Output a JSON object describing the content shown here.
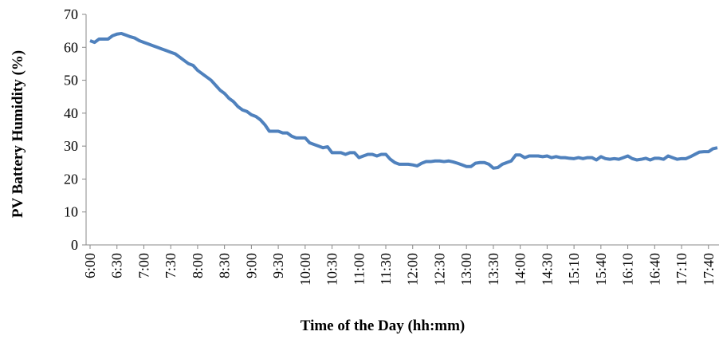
{
  "chart_data": {
    "type": "line",
    "y_label": "PV Battery Humidity (%)",
    "x_label": "Time of the Day (hh:mm)",
    "categories": [
      "6:00",
      null,
      null,
      null,
      null,
      null,
      "6:30",
      null,
      null,
      null,
      null,
      null,
      "7:00",
      null,
      null,
      null,
      null,
      null,
      "7:30",
      null,
      null,
      null,
      null,
      null,
      "8:00",
      null,
      null,
      null,
      null,
      null,
      "8:30",
      null,
      null,
      null,
      null,
      null,
      "9:00",
      null,
      null,
      null,
      null,
      null,
      "9:30",
      null,
      null,
      null,
      null,
      null,
      "10:00",
      null,
      null,
      null,
      null,
      null,
      "10:30",
      null,
      null,
      null,
      null,
      null,
      "11:00",
      null,
      null,
      null,
      null,
      null,
      "11:30",
      null,
      null,
      null,
      null,
      null,
      "12:00",
      null,
      null,
      null,
      null,
      null,
      "12:30",
      null,
      null,
      null,
      null,
      null,
      "13:00",
      null,
      null,
      null,
      null,
      null,
      "13:30",
      null,
      null,
      null,
      null,
      null,
      "14:00",
      null,
      null,
      null,
      null,
      null,
      "14:30",
      null,
      null,
      null,
      null,
      null,
      "15:10",
      null,
      null,
      null,
      null,
      null,
      "15:40",
      null,
      null,
      null,
      null,
      null,
      "16:10",
      null,
      null,
      null,
      null,
      null,
      "16:40",
      null,
      null,
      null,
      null,
      null,
      "17:10",
      null,
      null,
      null,
      null,
      null,
      "17:40",
      null,
      null
    ],
    "series": [
      {
        "name": "PV Battery Humidity",
        "color": "#4f81bd",
        "values": [
          62,
          61.5,
          62.5,
          62.5,
          62.5,
          63.5,
          64,
          64.2,
          63.7,
          63.2,
          62.8,
          62,
          61.5,
          61,
          60.5,
          60,
          59.5,
          59,
          58.5,
          58,
          57,
          56,
          55,
          54.5,
          53,
          52,
          51,
          50,
          48.5,
          47,
          46,
          44.5,
          43.5,
          42,
          41,
          40.5,
          39.5,
          39,
          38,
          36.5,
          34.5,
          34.5,
          34.5,
          34,
          34,
          33,
          32.5,
          32.5,
          32.5,
          31,
          30.5,
          30,
          29.5,
          29.8,
          28,
          28,
          28,
          27.5,
          28,
          28,
          26.5,
          27,
          27.5,
          27.5,
          27,
          27.5,
          27.5,
          26,
          25,
          24.5,
          24.5,
          24.5,
          24.3,
          24,
          24.8,
          25.3,
          25.3,
          25.5,
          25.5,
          25.3,
          25.5,
          25.2,
          24.8,
          24.3,
          23.8,
          23.8,
          24.8,
          25,
          25,
          24.5,
          23.3,
          23.5,
          24.5,
          25,
          25.5,
          27.3,
          27.3,
          26.5,
          27,
          27,
          27,
          26.8,
          27,
          26.5,
          26.8,
          26.5,
          26.5,
          26.3,
          26.2,
          26.5,
          26.2,
          26.5,
          26.5,
          25.8,
          26.8,
          26.2,
          26,
          26.2,
          26,
          26.5,
          27,
          26.2,
          25.8,
          26,
          26.3,
          25.8,
          26.3,
          26.3,
          26,
          27,
          26.5,
          26,
          26.2,
          26.2,
          26.8,
          27.5,
          28.2,
          28.3,
          28.3,
          29.2,
          29.5
        ]
      }
    ],
    "ylim": [
      0,
      70
    ],
    "yticks": [
      0,
      10,
      20,
      30,
      40,
      50,
      60,
      70
    ],
    "grid": false
  }
}
